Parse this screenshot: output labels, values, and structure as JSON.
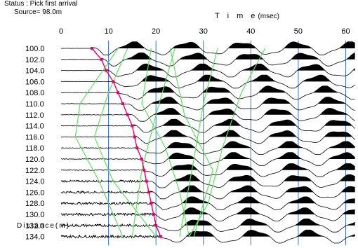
{
  "status": {
    "line1": "Status : Pick first arrival",
    "line2": "Source= 98.0m"
  },
  "axes": {
    "time_title": "T i m e",
    "time_unit": "(msec)",
    "distance_label": "Distance(m)",
    "time_ticks": [
      "0",
      "10",
      "20",
      "30",
      "40",
      "50",
      "60"
    ],
    "distance_ticks": [
      "100.0",
      "102.0",
      "104.0",
      "106.0",
      "108.0",
      "110.0",
      "112.0",
      "114.0",
      "116.0",
      "118.0",
      "120.0",
      "122.0",
      "124.0",
      "126.0",
      "128.0",
      "130.0",
      "132.0",
      "134.0"
    ]
  },
  "colors": {
    "grid": "#3a6fd8",
    "pick": "#e8006a",
    "guide": "#60e060",
    "trace": "#000000"
  },
  "chart_data": {
    "type": "seismic-wiggle",
    "x_unit": "msec",
    "xlim": [
      0,
      62
    ],
    "grid_times": [
      10,
      20,
      30,
      40,
      50,
      60
    ],
    "offsets_m": [
      100.0,
      102.0,
      104.0,
      106.0,
      108.0,
      110.0,
      112.0,
      114.0,
      116.0,
      118.0,
      120.0,
      122.0,
      124.0,
      126.0,
      128.0,
      130.0,
      132.0,
      134.0
    ],
    "first_arrival_picks_msec": [
      6.5,
      8.5,
      9.5,
      11.0,
      12.0,
      13.0,
      14.0,
      15.0,
      15.5,
      16.0,
      17.0,
      17.5,
      18.0,
      18.5,
      19.0,
      19.5,
      20.0,
      21.0
    ]
  }
}
